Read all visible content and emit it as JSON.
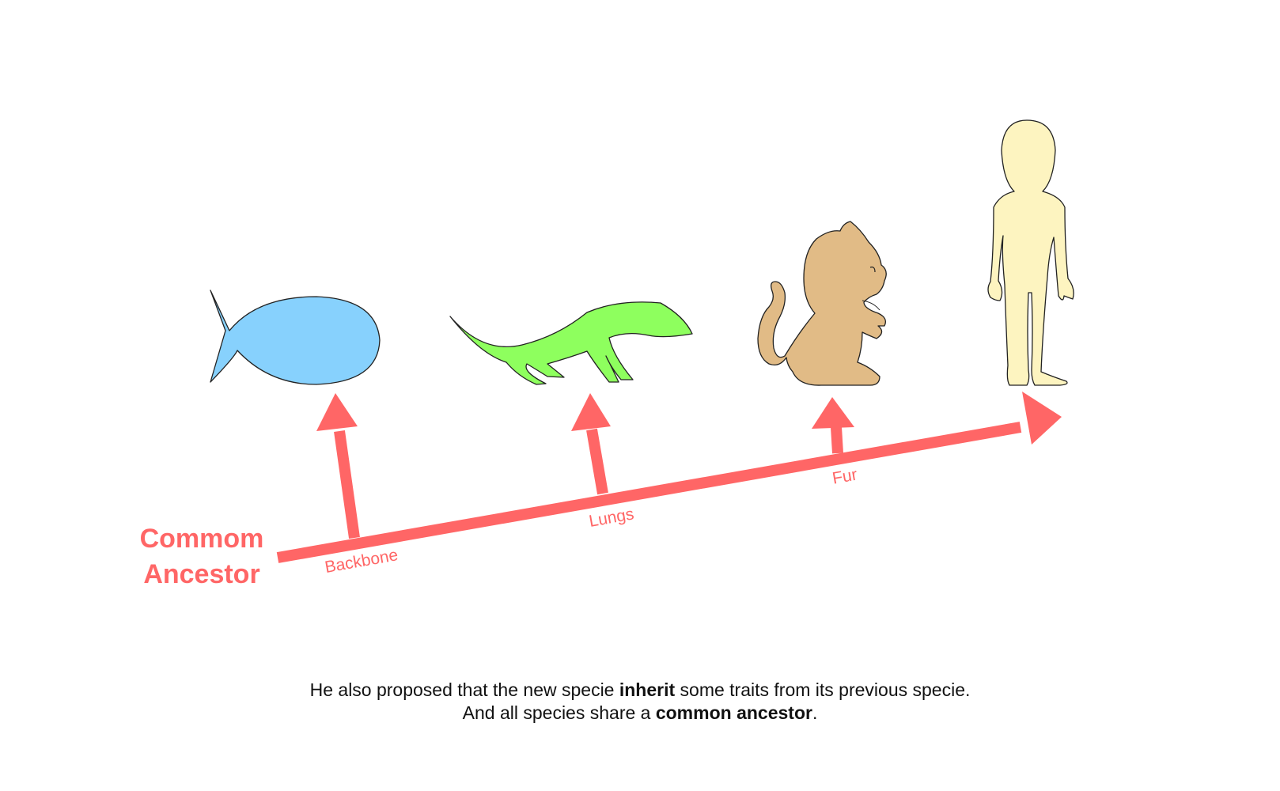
{
  "colors": {
    "arrow": "#ff6666",
    "fish": "#87d1fd",
    "lizard": "#8eff5e",
    "monkey": "#e1bb86",
    "human": "#fdf4c0",
    "outline": "#222222"
  },
  "diagram": {
    "ancestor_label": {
      "line1": "Commom",
      "line2": "Ancestor"
    },
    "traits": [
      {
        "label": "Backbone",
        "icon": "fish-icon"
      },
      {
        "label": "Lungs",
        "icon": "lizard-icon"
      },
      {
        "label": "Fur",
        "icon": "monkey-icon"
      }
    ],
    "final_species_icon": "human-icon"
  },
  "caption": {
    "line1_before": "He also proposed that the new specie ",
    "line1_bold": "inherit",
    "line1_after": " some traits from its previous specie.",
    "line2_before": "And all species share a ",
    "line2_bold": "common ancestor",
    "line2_after": "."
  }
}
